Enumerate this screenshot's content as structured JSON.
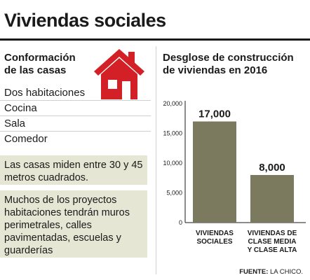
{
  "title": "Viviendas sociales",
  "left": {
    "heading": "Conformación de las casas",
    "rooms": [
      "Dos habitaciones",
      "Cocina",
      "Sala",
      "Comedor"
    ],
    "note1": "Las casas miden entre 30 y 45 metros cuadrados.",
    "note2": "Muchos de los proyectos habitaciones tendrán muros perimetrales, calles pavimentadas, escuelas y  guarderías"
  },
  "chart_data": {
    "type": "bar",
    "title": "Desglose de construcción de viviendas en 2016",
    "categories": [
      "VIVIENDAS SOCIALES",
      "VIVIENDAS DE CLASE MEDIA Y CLASE ALTA"
    ],
    "category_lines": [
      [
        "VIVIENDAS",
        "SOCIALES"
      ],
      [
        "VIVIENDAS DE",
        "CLASE MEDIA",
        "Y CLASE ALTA"
      ]
    ],
    "values": [
      17000,
      8000
    ],
    "value_labels": [
      "17,000",
      "8,000"
    ],
    "yticks": [
      0,
      5000,
      10000,
      15000,
      20000
    ],
    "ytick_labels": [
      "0",
      "5,000",
      "10,000",
      "15,000",
      "20,000"
    ],
    "ylim": [
      0,
      20000
    ],
    "grid": false,
    "bar_color": "#7b7a5e"
  },
  "source": {
    "label": "FUENTE:",
    "value": "LA CHICO."
  },
  "colors": {
    "house": "#d31f26",
    "note_bg": "#e6e6d4"
  }
}
